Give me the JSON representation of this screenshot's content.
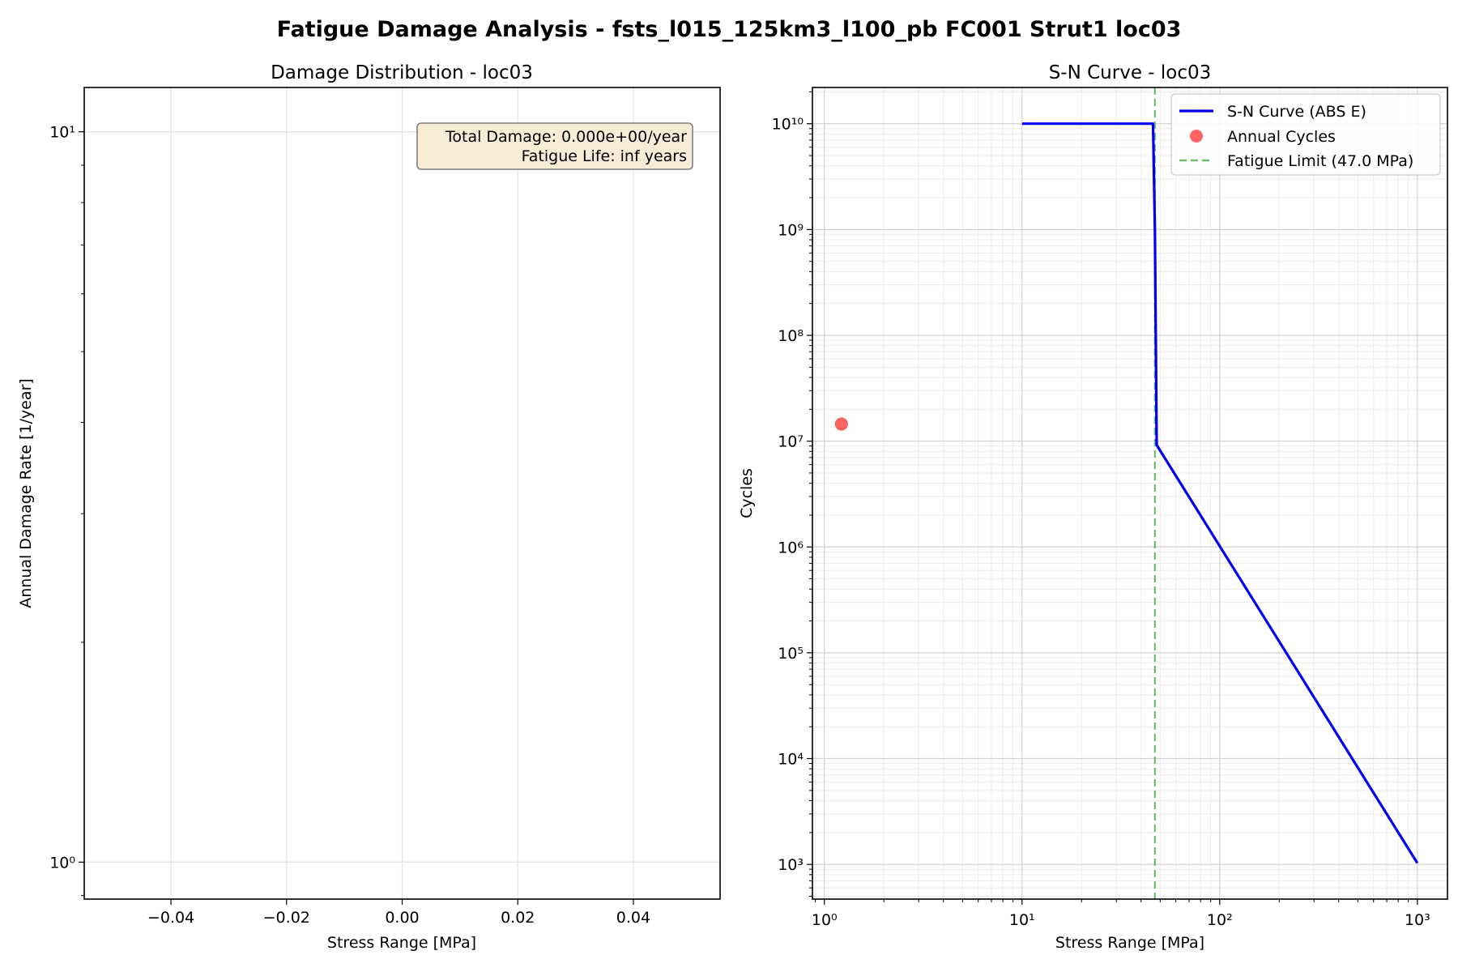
{
  "figure": {
    "suptitle": "Fatigue Damage Analysis - fsts_l015_125km3_l100_pb FC001 Strut1 loc03"
  },
  "chart_data": [
    {
      "type": "bar",
      "title": "Damage Distribution - loc03",
      "xlabel": "Stress Range [MPa]",
      "ylabel": "Annual Damage Rate [1/year]",
      "xscale": "linear",
      "yscale": "log",
      "xlim": [
        -0.055,
        0.055
      ],
      "ylim": [
        0.89,
        11.5
      ],
      "xticks": [
        -0.04,
        -0.02,
        0.0,
        0.02,
        0.04
      ],
      "xtick_labels": [
        "−0.04",
        "−0.02",
        "0.00",
        "0.02",
        "0.04"
      ],
      "yticks": [
        1,
        10
      ],
      "grid": true,
      "values": [],
      "annotation": {
        "lines": [
          "Total Damage: 0.000e+00/year",
          "Fatigue Life: inf years"
        ],
        "placement": "top-right",
        "facecolor": "#f9ecd6",
        "edgecolor": "#7f7f7f"
      }
    },
    {
      "type": "line",
      "title": "S-N Curve - loc03",
      "xlabel": "Stress Range [MPa]",
      "ylabel": "Cycles",
      "xscale": "log",
      "yscale": "log",
      "xlim": [
        0.87,
        1420
      ],
      "ylim": [
        470,
        22000000000.0
      ],
      "xticks": [
        1,
        10,
        100,
        1000
      ],
      "yticks": [
        1000,
        10000,
        100000,
        1000000,
        10000000,
        100000000,
        1000000000,
        10000000000
      ],
      "grid": true,
      "grid_minor": true,
      "legend_placement": "upper right",
      "series": [
        {
          "name": "S-N Curve (ABS E)",
          "kind": "line",
          "color": "#0000ee",
          "x": [
            10,
            46,
            47,
            48,
            1000
          ],
          "y": [
            10000000000.0,
            10000000000.0,
            1000000000.0,
            9200000.0,
            1030.0
          ]
        },
        {
          "name": "Annual Cycles",
          "kind": "scatter",
          "color": "#ff5252",
          "x": [
            1.22
          ],
          "y": [
            14500000.0
          ]
        },
        {
          "name": "Fatigue Limit (47.0 MPa)",
          "kind": "vline",
          "color": "#6dbb6d",
          "x": [
            47.0
          ]
        }
      ]
    }
  ]
}
